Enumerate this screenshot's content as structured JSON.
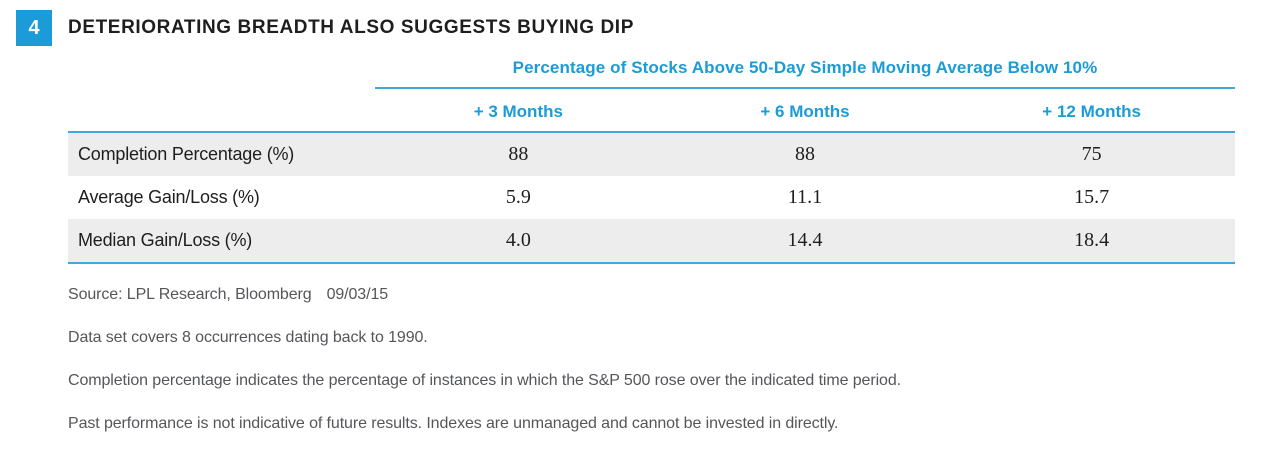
{
  "figure": {
    "number": "4",
    "title": "DETERIORATING BREADTH ALSO SUGGESTS BUYING DIP"
  },
  "table": {
    "subtitle": "Percentage of Stocks Above 50-Day Simple Moving Average Below 10%",
    "columns": [
      "+ 3 Months",
      "+ 6 Months",
      "+ 12 Months"
    ],
    "rows": [
      {
        "label": "Completion Percentage (%)",
        "values": [
          "88",
          "88",
          "75"
        ]
      },
      {
        "label": "Average Gain/Loss (%)",
        "values": [
          "5.9",
          "11.1",
          "15.7"
        ]
      },
      {
        "label": "Median Gain/Loss (%)",
        "values": [
          "4.0",
          "14.4",
          "18.4"
        ]
      }
    ]
  },
  "footnotes": {
    "source": "Source: LPL Research, Bloomberg",
    "date": "09/03/15",
    "notes": [
      "Data set covers 8 occurrences dating back to 1990.",
      "Completion percentage indicates the percentage of instances in which the S&P 500 rose over the indicated time period.",
      "Past performance is not indicative of future results. Indexes are unmanaged and cannot be invested in directly."
    ]
  },
  "chart_data": {
    "type": "table",
    "title": "Percentage of Stocks Above 50-Day Simple Moving Average Below 10%",
    "categories": [
      "+ 3 Months",
      "+ 6 Months",
      "+ 12 Months"
    ],
    "series": [
      {
        "name": "Completion Percentage (%)",
        "values": [
          88,
          88,
          75
        ]
      },
      {
        "name": "Average Gain/Loss (%)",
        "values": [
          5.9,
          11.1,
          15.7
        ]
      },
      {
        "name": "Median Gain/Loss (%)",
        "values": [
          4.0,
          14.4,
          18.4
        ]
      }
    ]
  },
  "colors": {
    "accent_blue": "#1b9cd8",
    "line_blue": "#41a8db",
    "row_shade_gray": "#ededee",
    "title_black": "#1e1e1e",
    "footnote_gray": "#55565a"
  }
}
